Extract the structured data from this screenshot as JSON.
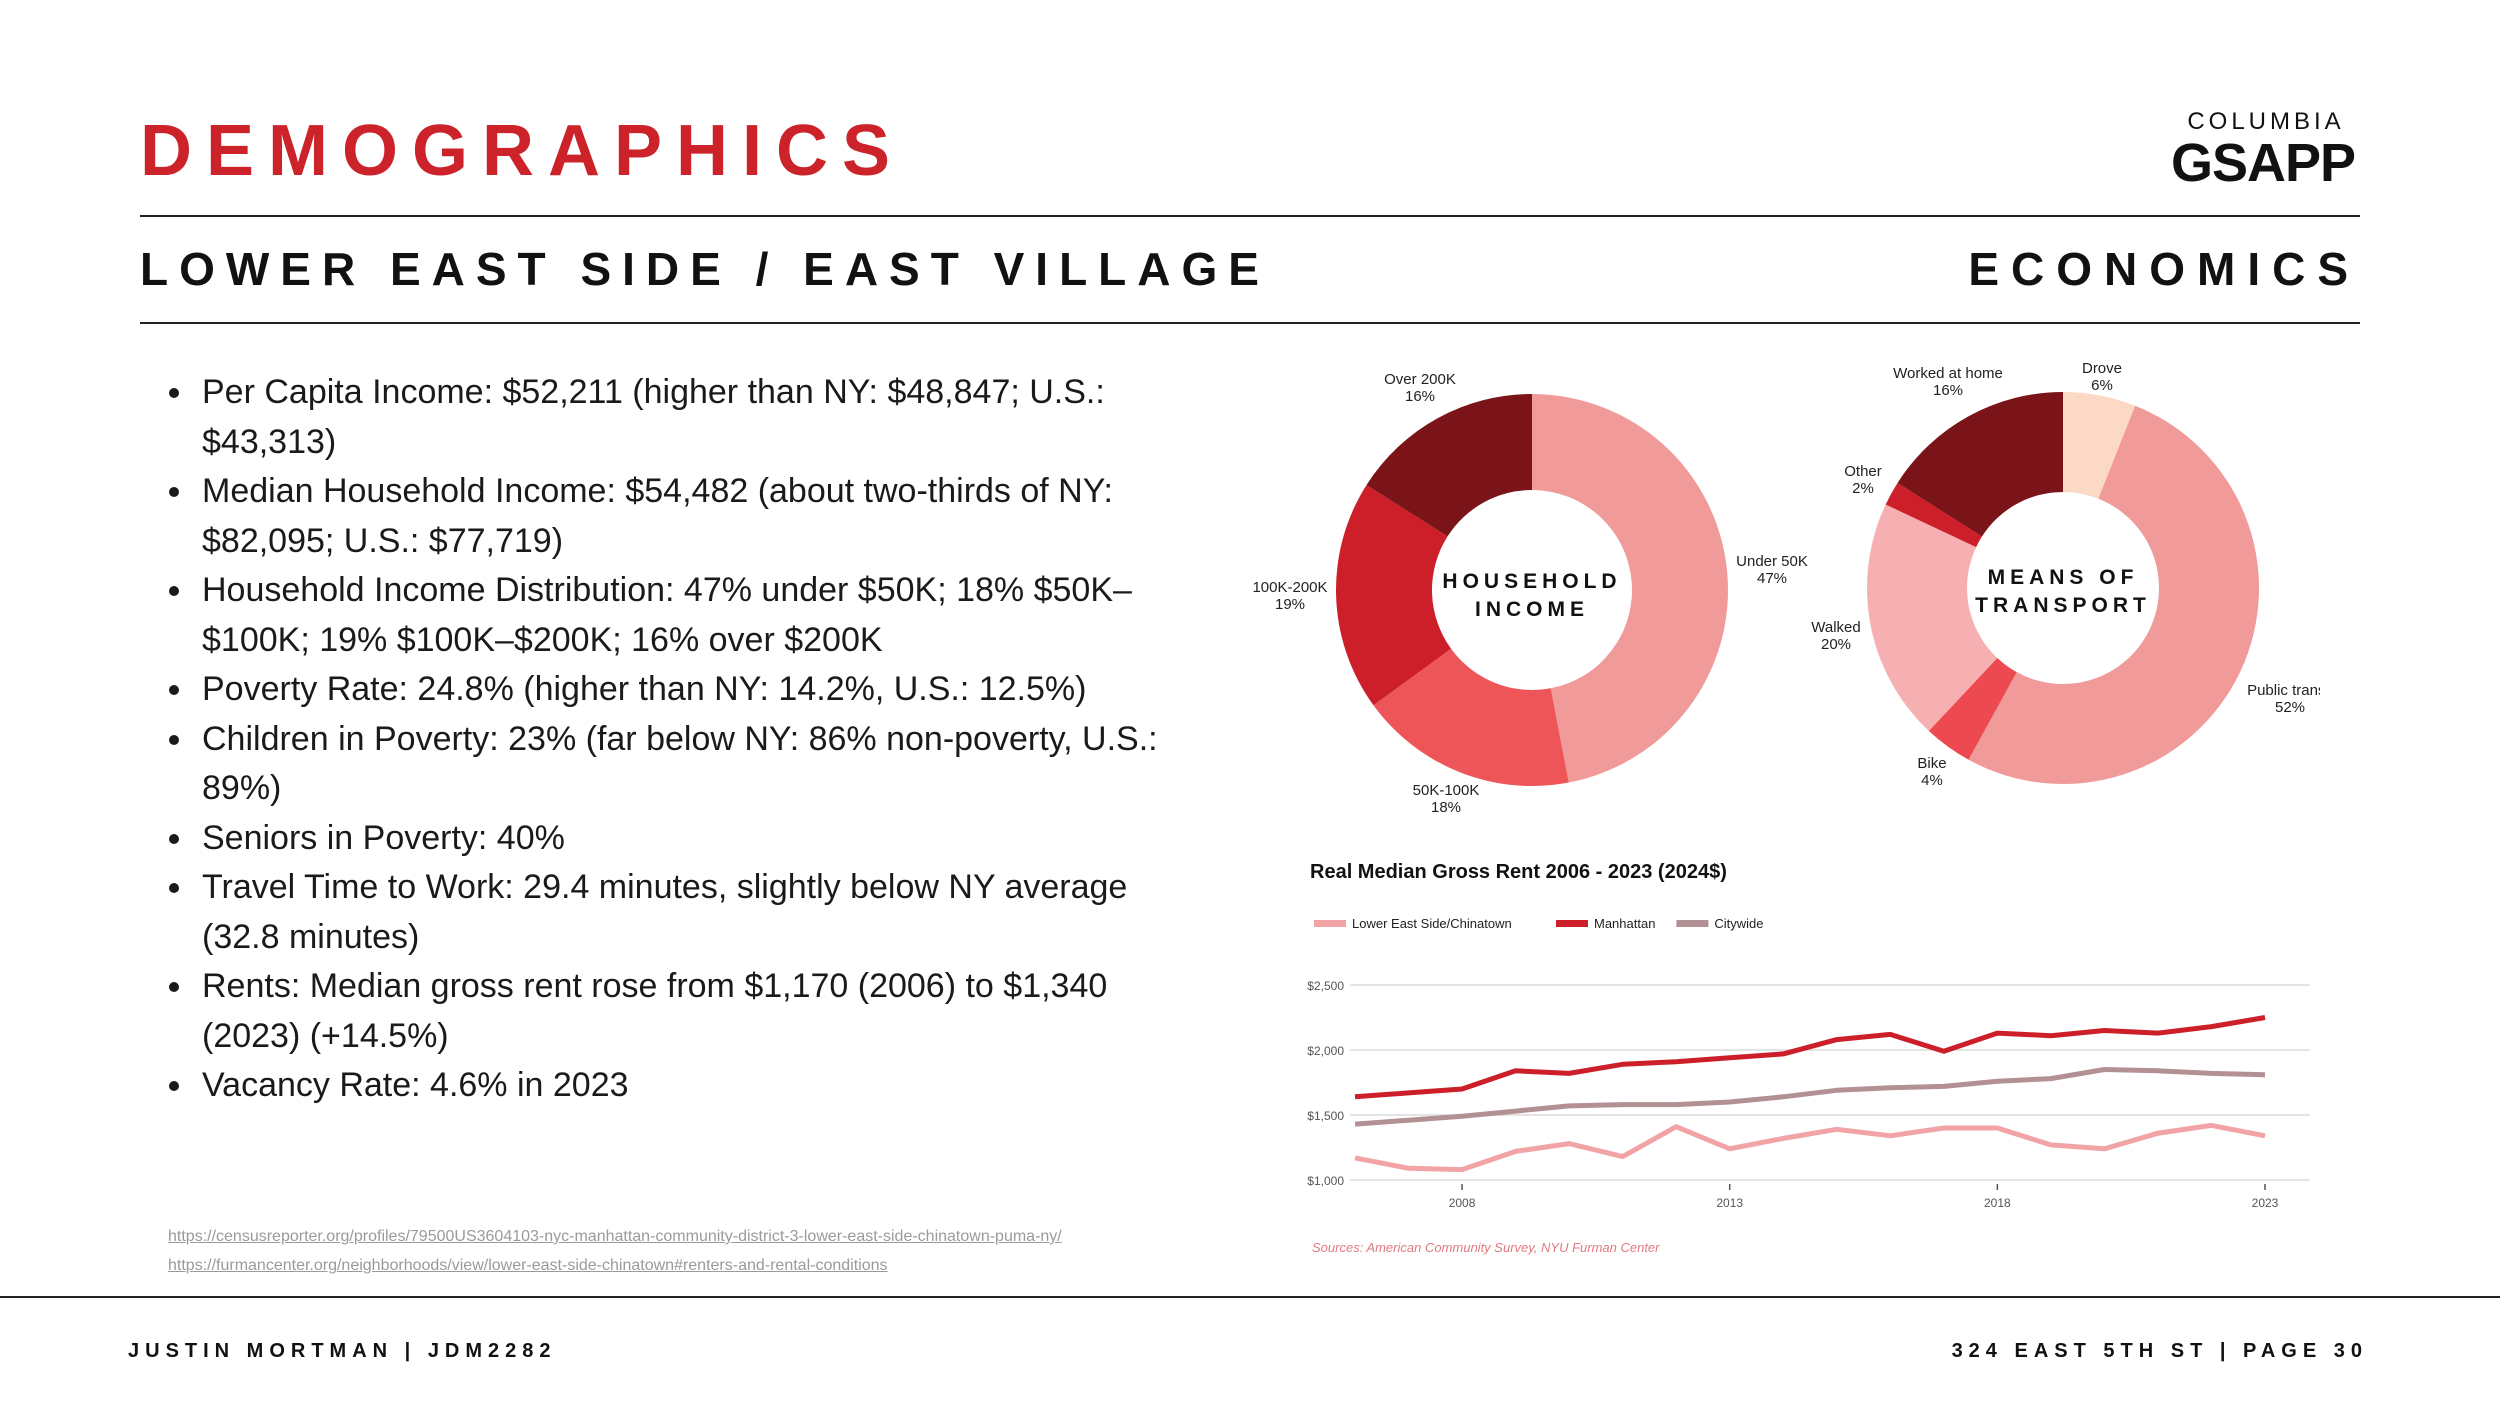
{
  "header": {
    "title": "DEMOGRAPHICS",
    "logo_top": "COLUMBIA",
    "logo_main": "GSAPP",
    "subtitle_left": "LOWER EAST SIDE / EAST VILLAGE",
    "subtitle_right": "ECONOMICS"
  },
  "bullets": [
    "Per Capita Income: $52,211 (higher than NY: $48,847; U.S.: $43,313)",
    "Median Household Income: $54,482 (about two-thirds of NY: $82,095; U.S.: $77,719)",
    "Household Income Distribution: 47% under $50K; 18% $50K–$100K; 19% $100K–$200K; 16% over $200K",
    "Poverty Rate: 24.8% (higher than NY: 14.2%, U.S.: 12.5%)",
    "Children in Poverty: 23% (far below NY: 86% non-poverty, U.S.: 89%)",
    "Seniors in Poverty: 40%",
    "Travel Time to Work: 29.4 minutes, slightly below NY average (32.8 minutes)",
    "Rents: Median gross rent rose from $1,170 (2006) to $1,340 (2023) (+14.5%)",
    "Vacancy Rate: 4.6% in 2023"
  ],
  "links": [
    "https://censusreporter.org/profiles/79500US3604103-nyc-manhattan-community-district-3-lower-east-side-chinatown-puma-ny/",
    "https://furmancenter.org/neighborhoods/view/lower-east-side-chinatown#renters-and-rental-conditions"
  ],
  "footer": {
    "left": "JUSTIN MORTMAN | JDM2282",
    "right": "324 EAST 5TH ST | PAGE 30"
  },
  "chart_data": [
    {
      "type": "pie",
      "title": "HOUSEHOLD INCOME",
      "center_lines": [
        "HOUSEHOLD",
        "INCOME"
      ],
      "slices": [
        {
          "label": "Under 50K",
          "pct_label": "47%",
          "value": 47,
          "color": "#f19a9a"
        },
        {
          "label": "50K-100K",
          "pct_label": "18%",
          "value": 18,
          "color": "#ee5558"
        },
        {
          "label": "100K-200K",
          "pct_label": "19%",
          "value": 19,
          "color": "#cc1f2a"
        },
        {
          "label": "Over 200K",
          "pct_label": "16%",
          "value": 16,
          "color": "#7a1418"
        }
      ]
    },
    {
      "type": "pie",
      "title": "MEANS OF TRANSPORT",
      "center_lines": [
        "MEANS OF",
        "TRANSPORT"
      ],
      "slices": [
        {
          "label": "Drove",
          "pct_label": "6%",
          "value": 6,
          "color": "#fcd9c5"
        },
        {
          "label": "Public transit",
          "pct_label": "52%",
          "value": 52,
          "color": "#f19a9a"
        },
        {
          "label": "Bike",
          "pct_label": "4%",
          "value": 4,
          "color": "#ec4a50"
        },
        {
          "label": "Walked",
          "pct_label": "20%",
          "value": 20,
          "color": "#f7b0b2"
        },
        {
          "label": "Other",
          "pct_label": "2%",
          "value": 2,
          "color": "#cc1f2a"
        },
        {
          "label": "Worked at home",
          "pct_label": "16%",
          "value": 16,
          "color": "#7a1418"
        }
      ]
    },
    {
      "type": "line",
      "title": "Real Median Gross Rent 2006 - 2023 (2024$)",
      "source": "Sources: American Community Survey, NYU Furman Center",
      "x": [
        2006,
        2007,
        2008,
        2009,
        2010,
        2011,
        2012,
        2013,
        2014,
        2015,
        2016,
        2017,
        2018,
        2019,
        2020,
        2021,
        2022,
        2023
      ],
      "xticks": [
        2008,
        2013,
        2018,
        2023
      ],
      "yticks": [
        1000,
        1500,
        2000,
        2500
      ],
      "ytick_labels": [
        "$1,000",
        "$1,500",
        "$2,000",
        "$2,500"
      ],
      "ylim": [
        1000,
        2500
      ],
      "series": [
        {
          "name": "Lower East Side/Chinatown",
          "color": "#f1a3a6",
          "values": [
            1170,
            1090,
            1080,
            1220,
            1280,
            1180,
            1410,
            1240,
            1320,
            1390,
            1340,
            1400,
            1400,
            1270,
            1240,
            1360,
            1420,
            1340
          ]
        },
        {
          "name": "Manhattan",
          "color": "#cc1f2a",
          "values": [
            1640,
            1670,
            1700,
            1840,
            1820,
            1890,
            1910,
            1940,
            1970,
            2080,
            2120,
            1990,
            2130,
            2110,
            2150,
            2130,
            2180,
            2250
          ]
        },
        {
          "name": "Citywide",
          "color": "#b39094",
          "values": [
            1430,
            1460,
            1490,
            1530,
            1570,
            1580,
            1580,
            1600,
            1640,
            1690,
            1710,
            1720,
            1760,
            1780,
            1850,
            1840,
            1820,
            1810
          ]
        }
      ]
    }
  ]
}
